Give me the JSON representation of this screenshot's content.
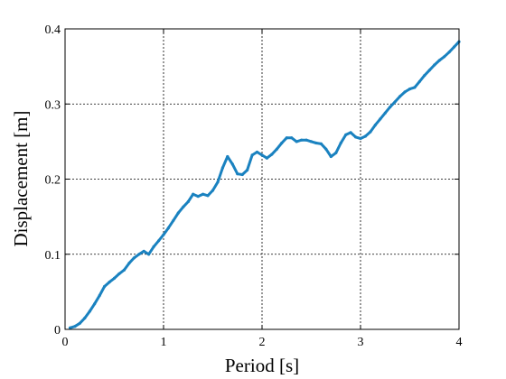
{
  "chart_data": {
    "type": "line",
    "title": "",
    "xlabel": "Period [s]",
    "ylabel": "Displacement [m]",
    "xlim": [
      0,
      4
    ],
    "ylim": [
      0,
      0.4
    ],
    "grid": true,
    "x_ticks": [
      0,
      1,
      2,
      3,
      4
    ],
    "x_tick_labels": [
      "0",
      "1",
      "2",
      "3",
      "4"
    ],
    "y_ticks": [
      0,
      0.1,
      0.2,
      0.3,
      0.4
    ],
    "y_tick_labels": [
      "0",
      "0.1",
      "0.2",
      "0.3",
      "0.4"
    ],
    "colors": {
      "series": "#1a82c0",
      "grid": "#000000",
      "axis": "#000000"
    },
    "series": [
      {
        "x": [
          0.05,
          0.1,
          0.15,
          0.2,
          0.25,
          0.3,
          0.35,
          0.4,
          0.45,
          0.5,
          0.55,
          0.6,
          0.65,
          0.7,
          0.75,
          0.8,
          0.85,
          0.9,
          0.95,
          1.0,
          1.05,
          1.1,
          1.15,
          1.2,
          1.25,
          1.3,
          1.35,
          1.4,
          1.45,
          1.5,
          1.55,
          1.6,
          1.65,
          1.7,
          1.75,
          1.8,
          1.85,
          1.9,
          1.95,
          2.0,
          2.05,
          2.1,
          2.15,
          2.2,
          2.25,
          2.3,
          2.35,
          2.4,
          2.45,
          2.5,
          2.55,
          2.6,
          2.65,
          2.7,
          2.75,
          2.8,
          2.85,
          2.9,
          2.95,
          3.0,
          3.05,
          3.1,
          3.15,
          3.2,
          3.25,
          3.3,
          3.35,
          3.4,
          3.45,
          3.5,
          3.55,
          3.6,
          3.65,
          3.7,
          3.75,
          3.8,
          3.85,
          3.9,
          3.95,
          4.0
        ],
        "y": [
          0.002,
          0.004,
          0.008,
          0.015,
          0.024,
          0.034,
          0.045,
          0.057,
          0.063,
          0.068,
          0.074,
          0.079,
          0.088,
          0.095,
          0.1,
          0.104,
          0.1,
          0.11,
          0.118,
          0.126,
          0.135,
          0.145,
          0.155,
          0.163,
          0.17,
          0.18,
          0.177,
          0.18,
          0.178,
          0.185,
          0.196,
          0.215,
          0.23,
          0.22,
          0.207,
          0.206,
          0.212,
          0.232,
          0.236,
          0.232,
          0.228,
          0.233,
          0.24,
          0.248,
          0.255,
          0.255,
          0.25,
          0.252,
          0.252,
          0.25,
          0.248,
          0.247,
          0.24,
          0.23,
          0.235,
          0.248,
          0.259,
          0.262,
          0.256,
          0.254,
          0.257,
          0.263,
          0.272,
          0.28,
          0.288,
          0.296,
          0.303,
          0.31,
          0.316,
          0.32,
          0.322,
          0.33,
          0.338,
          0.345,
          0.352,
          0.358,
          0.363,
          0.369,
          0.376,
          0.383
        ]
      }
    ]
  }
}
